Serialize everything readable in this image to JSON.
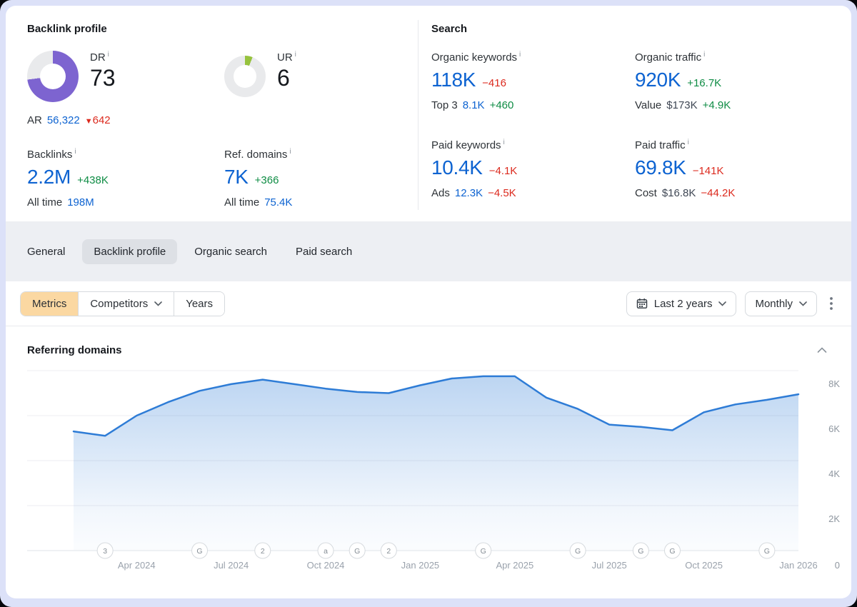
{
  "backlink_profile": {
    "title": "Backlink profile",
    "rating_donuts": [
      {
        "label": "DR",
        "value": "73",
        "percent": 73,
        "color": "#7d64d0",
        "track": "#e9eaec"
      },
      {
        "label": "UR",
        "value": "6",
        "percent": 6,
        "color": "#96c23d",
        "track": "#e9eaec"
      }
    ],
    "ar": {
      "label": "AR",
      "value": "56,322",
      "change": "642",
      "change_direction": "down",
      "change_arrow": "▼"
    },
    "stats": [
      {
        "label": "Backlinks",
        "value": "2.2M",
        "delta": "+438K",
        "trend": "up",
        "sub_label": "All time",
        "sub_value": "198M"
      },
      {
        "label": "Ref. domains",
        "value": "7K",
        "delta": "+366",
        "trend": "up",
        "sub_label": "All time",
        "sub_value": "75.4K"
      }
    ]
  },
  "search": {
    "title": "Search",
    "stats": [
      {
        "label": "Organic keywords",
        "value": "118K",
        "delta": "−416",
        "trend": "down",
        "sub_label": "Top 3",
        "sub_value": "8.1K",
        "sub_is_link": true,
        "sub_delta": "+460",
        "sub_trend": "up"
      },
      {
        "label": "Organic traffic",
        "value": "920K",
        "delta": "+16.7K",
        "trend": "up",
        "sub_label": "Value",
        "sub_value": "$173K",
        "sub_is_link": false,
        "sub_delta": "+4.9K",
        "sub_trend": "up"
      },
      {
        "label": "Paid keywords",
        "value": "10.4K",
        "delta": "−4.1K",
        "trend": "down",
        "sub_label": "Ads",
        "sub_value": "12.3K",
        "sub_is_link": true,
        "sub_delta": "−4.5K",
        "sub_trend": "down"
      },
      {
        "label": "Paid traffic",
        "value": "69.8K",
        "delta": "−141K",
        "trend": "down",
        "sub_label": "Cost",
        "sub_value": "$16.8K",
        "sub_is_link": false,
        "sub_delta": "−44.2K",
        "sub_trend": "down"
      }
    ]
  },
  "tabs": {
    "items": [
      {
        "label": "General",
        "active": false
      },
      {
        "label": "Backlink profile",
        "active": true
      },
      {
        "label": "Organic search",
        "active": false
      },
      {
        "label": "Paid search",
        "active": false
      }
    ]
  },
  "toolbar": {
    "segments": [
      {
        "label": "Metrics",
        "active": true,
        "dropdown": false
      },
      {
        "label": "Competitors",
        "active": false,
        "dropdown": true
      },
      {
        "label": "Years",
        "active": false,
        "dropdown": false
      }
    ],
    "date_range_label": "Last 2 years",
    "granularity_label": "Monthly",
    "icons": [
      "calendar-icon",
      "chevron-down-icon",
      "kebab-menu-icon"
    ]
  },
  "chart_section": {
    "title": "Referring domains"
  },
  "chart_data": {
    "type": "area",
    "title": "Referring domains",
    "x": [
      "Feb 2024",
      "Mar 2024",
      "Apr 2024",
      "May 2024",
      "Jun 2024",
      "Jul 2024",
      "Aug 2024",
      "Sep 2024",
      "Oct 2024",
      "Nov 2024",
      "Dec 2024",
      "Jan 2025",
      "Feb 2025",
      "Mar 2025",
      "Apr 2025",
      "May 2025",
      "Jun 2025",
      "Jul 2025",
      "Aug 2025",
      "Sep 2025",
      "Oct 2025",
      "Nov 2025",
      "Dec 2025",
      "Jan 2026"
    ],
    "values": [
      5300,
      5100,
      6000,
      6600,
      7100,
      7400,
      7600,
      7400,
      7200,
      7050,
      7000,
      7350,
      7650,
      7750,
      7750,
      6800,
      6300,
      5600,
      5500,
      5350,
      6150,
      6500,
      6700,
      6950
    ],
    "ylabel": "",
    "ylim": [
      0,
      8200
    ],
    "grid": true,
    "legend_position": "none",
    "line_color": "#2e7cd6",
    "y_ticks": [
      {
        "value": 8000,
        "label": "8K"
      },
      {
        "value": 6000,
        "label": "6K"
      },
      {
        "value": 4000,
        "label": "4K"
      },
      {
        "value": 2000,
        "label": "2K"
      },
      {
        "value": 0,
        "label": "0"
      }
    ],
    "x_ticks": [
      {
        "index": 2,
        "label": "Apr 2024"
      },
      {
        "index": 5,
        "label": "Jul 2024"
      },
      {
        "index": 8,
        "label": "Oct 2024"
      },
      {
        "index": 11,
        "label": "Jan 2025"
      },
      {
        "index": 14,
        "label": "Apr 2025"
      },
      {
        "index": 17,
        "label": "Jul 2025"
      },
      {
        "index": 20,
        "label": "Oct 2025"
      },
      {
        "index": 23,
        "label": "Jan 2026"
      }
    ],
    "event_markers": [
      {
        "index": 1,
        "glyph": "3"
      },
      {
        "index": 4,
        "glyph": "G"
      },
      {
        "index": 6,
        "glyph": "2"
      },
      {
        "index": 8,
        "glyph": "a"
      },
      {
        "index": 9,
        "glyph": "G"
      },
      {
        "index": 10,
        "glyph": "2"
      },
      {
        "index": 13,
        "glyph": "G"
      },
      {
        "index": 16,
        "glyph": "G"
      },
      {
        "index": 18,
        "glyph": "G"
      },
      {
        "index": 19,
        "glyph": "G"
      },
      {
        "index": 22,
        "glyph": "G"
      }
    ]
  },
  "colors": {
    "accent_blue": "#0d63d1",
    "positive_green": "#0e8c44",
    "negative_red": "#dc2a1e",
    "dr_purple": "#7d64d0",
    "ur_lime": "#96c23d",
    "metrics_peach": "#fbd8a2",
    "band_gray": "#edeff3",
    "page_lavender": "#dce1f8",
    "chart_line": "#2e7cd6"
  }
}
